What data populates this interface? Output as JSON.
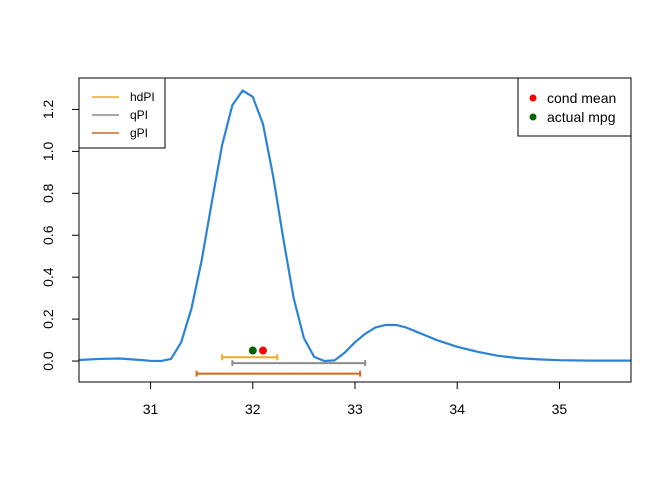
{
  "chart_data": {
    "type": "line",
    "title": "",
    "xlabel": "",
    "ylabel": "",
    "xlim": [
      30.3,
      35.7
    ],
    "ylim": [
      -0.1,
      1.35
    ],
    "x_ticks": [
      31,
      32,
      33,
      34,
      35
    ],
    "y_ticks": [
      0.0,
      0.2,
      0.4,
      0.6,
      0.8,
      1.0,
      1.2
    ],
    "x_tick_labels": [
      "31",
      "32",
      "33",
      "34",
      "35"
    ],
    "y_tick_labels": [
      "0.0",
      "0.2",
      "0.4",
      "0.6",
      "0.8",
      "1.0",
      "1.2"
    ],
    "grid": false,
    "density_curve": {
      "color": "#2b83d6",
      "x": [
        30.3,
        30.5,
        30.7,
        30.9,
        31.0,
        31.1,
        31.2,
        31.3,
        31.4,
        31.5,
        31.6,
        31.7,
        31.8,
        31.9,
        32.0,
        32.1,
        32.2,
        32.3,
        32.4,
        32.5,
        32.6,
        32.7,
        32.8,
        32.9,
        33.0,
        33.1,
        33.2,
        33.3,
        33.4,
        33.5,
        33.6,
        33.7,
        33.8,
        34.0,
        34.2,
        34.4,
        34.6,
        34.8,
        35.0,
        35.3,
        35.7
      ],
      "y": [
        0.005,
        0.01,
        0.012,
        0.005,
        0.001,
        0.0,
        0.01,
        0.09,
        0.25,
        0.48,
        0.76,
        1.03,
        1.22,
        1.29,
        1.26,
        1.13,
        0.88,
        0.58,
        0.3,
        0.11,
        0.02,
        0.0,
        0.003,
        0.04,
        0.09,
        0.13,
        0.16,
        0.172,
        0.172,
        0.16,
        0.14,
        0.12,
        0.1,
        0.068,
        0.044,
        0.025,
        0.014,
        0.008,
        0.004,
        0.002,
        0.002
      ]
    },
    "intervals": [
      {
        "name": "hdPI",
        "lo": 31.7,
        "hi": 32.24,
        "y": 0.018,
        "color": "#f2a822"
      },
      {
        "name": "qPI",
        "lo": 31.8,
        "hi": 33.1,
        "y": -0.01,
        "color": "#8c8c8c"
      },
      {
        "name": "gPI",
        "lo": 31.45,
        "hi": 33.05,
        "y": -0.06,
        "color": "#d2691e"
      }
    ],
    "points": [
      {
        "name": "cond mean",
        "x": 32.1,
        "y": 0.05,
        "color": "#ff0000"
      },
      {
        "name": "actual mpg",
        "x": 32.0,
        "y": 0.05,
        "color": "#006400"
      }
    ],
    "legend_left": {
      "placement": "top-left",
      "items": [
        {
          "label": "hdPI",
          "color": "#f2a822"
        },
        {
          "label": "qPI",
          "color": "#8c8c8c"
        },
        {
          "label": "gPI",
          "color": "#d2691e"
        }
      ]
    },
    "legend_right": {
      "placement": "top-right",
      "items": [
        {
          "label": "cond mean",
          "color": "#ff0000"
        },
        {
          "label": "actual mpg",
          "color": "#006400"
        }
      ]
    }
  }
}
